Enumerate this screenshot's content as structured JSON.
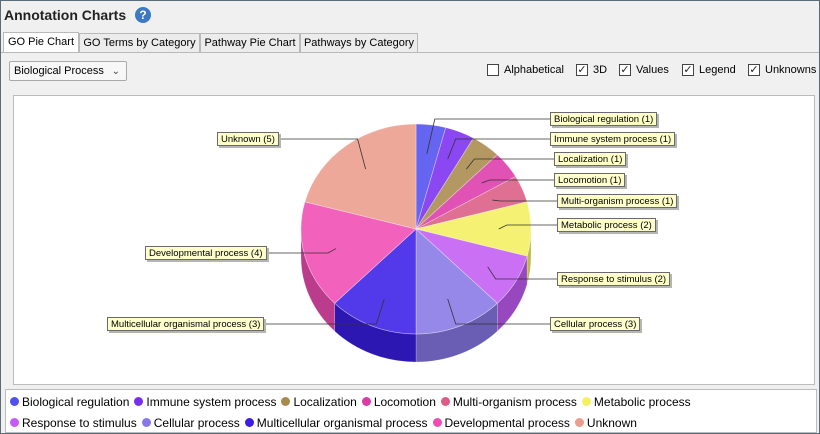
{
  "window": {
    "title": "Annotation Charts",
    "help_icon": "question-circle-icon"
  },
  "tabs": [
    {
      "label": "GO Pie Chart",
      "active": true
    },
    {
      "label": "GO Terms by Category",
      "active": false
    },
    {
      "label": "Pathway Pie Chart",
      "active": false
    },
    {
      "label": "Pathways by Category",
      "active": false
    }
  ],
  "category_select": {
    "value": "Biological Process"
  },
  "options": [
    {
      "label": "Alphabetical",
      "checked": false
    },
    {
      "label": "3D",
      "checked": true
    },
    {
      "label": "Values",
      "checked": true
    },
    {
      "label": "Legend",
      "checked": true
    },
    {
      "label": "Unknowns",
      "checked": true
    }
  ],
  "chart_data": {
    "type": "pie",
    "three_d": true,
    "slices": [
      {
        "name": "Biological regulation",
        "value": 1,
        "label": "Biological regulation (1)",
        "color": "#5050f0"
      },
      {
        "name": "Immune system process",
        "value": 1,
        "label": "Immune system process (1)",
        "color": "#7a2ef0"
      },
      {
        "name": "Localization",
        "value": 1,
        "label": "Localization (1)",
        "color": "#a98a4c"
      },
      {
        "name": "Locomotion",
        "value": 1,
        "label": "Locomotion (1)",
        "color": "#dc3aa8"
      },
      {
        "name": "Multi-organism process",
        "value": 1,
        "label": "Multi-organism process (1)",
        "color": "#dc5c84"
      },
      {
        "name": "Metabolic process",
        "value": 2,
        "label": "Metabolic process (2)",
        "color": "#f4f060"
      },
      {
        "name": "Response to stimulus",
        "value": 2,
        "label": "Response to stimulus (2)",
        "color": "#c25cf4"
      },
      {
        "name": "Cellular process",
        "value": 3,
        "label": "Cellular process (3)",
        "color": "#8678e6"
      },
      {
        "name": "Multicellular organismal process",
        "value": 3,
        "label": "Multicellular organismal process (3)",
        "color": "#3a1ee6"
      },
      {
        "name": "Developmental process",
        "value": 4,
        "label": "Developmental process (4)",
        "color": "#f04cb4"
      },
      {
        "name": "Unknown",
        "value": 5,
        "label": "Unknown (5)",
        "color": "#ec9c8c"
      }
    ]
  }
}
